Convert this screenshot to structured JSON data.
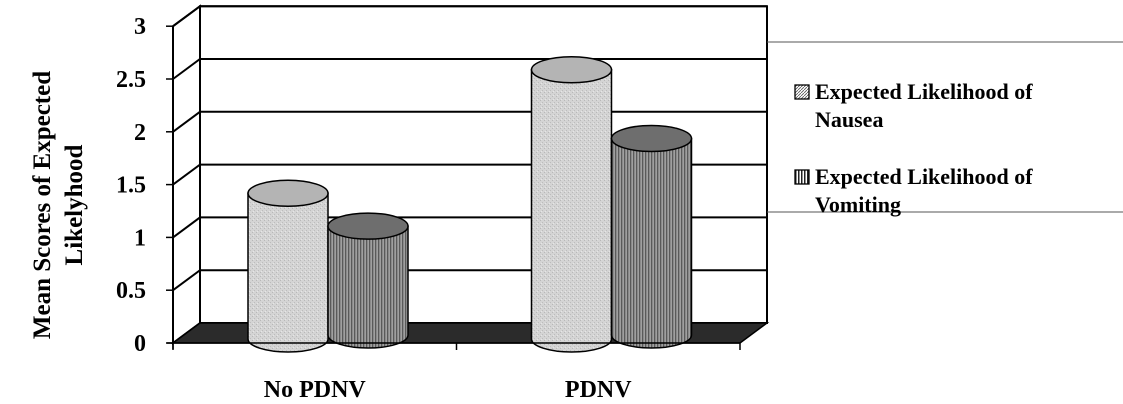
{
  "chart_data": {
    "type": "bar",
    "style": "3d-cylinder",
    "categories": [
      "No PDNV",
      "PDNV"
    ],
    "series": [
      {
        "name": "Expected Likelihood of Nausea",
        "legend_lines": [
          "Expected Likelihood of",
          "Nausea"
        ],
        "values": [
          1.38,
          2.55
        ],
        "color": "#c8c8c8",
        "pattern": "light-dotted"
      },
      {
        "name": "Expected Likelihood of Vomiting",
        "legend_lines": [
          "Expected Likelihood of",
          "Vomiting"
        ],
        "values": [
          1.05,
          1.88
        ],
        "color": "#787878",
        "pattern": "dark-vertical-stripes"
      }
    ],
    "yticks": [
      "0",
      "0.5",
      "1",
      "1.5",
      "2",
      "2.5",
      "3"
    ],
    "ylim": [
      0,
      3
    ],
    "ylabel_lines": [
      "Mean Scores of Expected",
      "Likelyhood"
    ],
    "xlabel": "",
    "grid": true,
    "legend_position": "right",
    "floor_color": "#2b2b2b"
  }
}
